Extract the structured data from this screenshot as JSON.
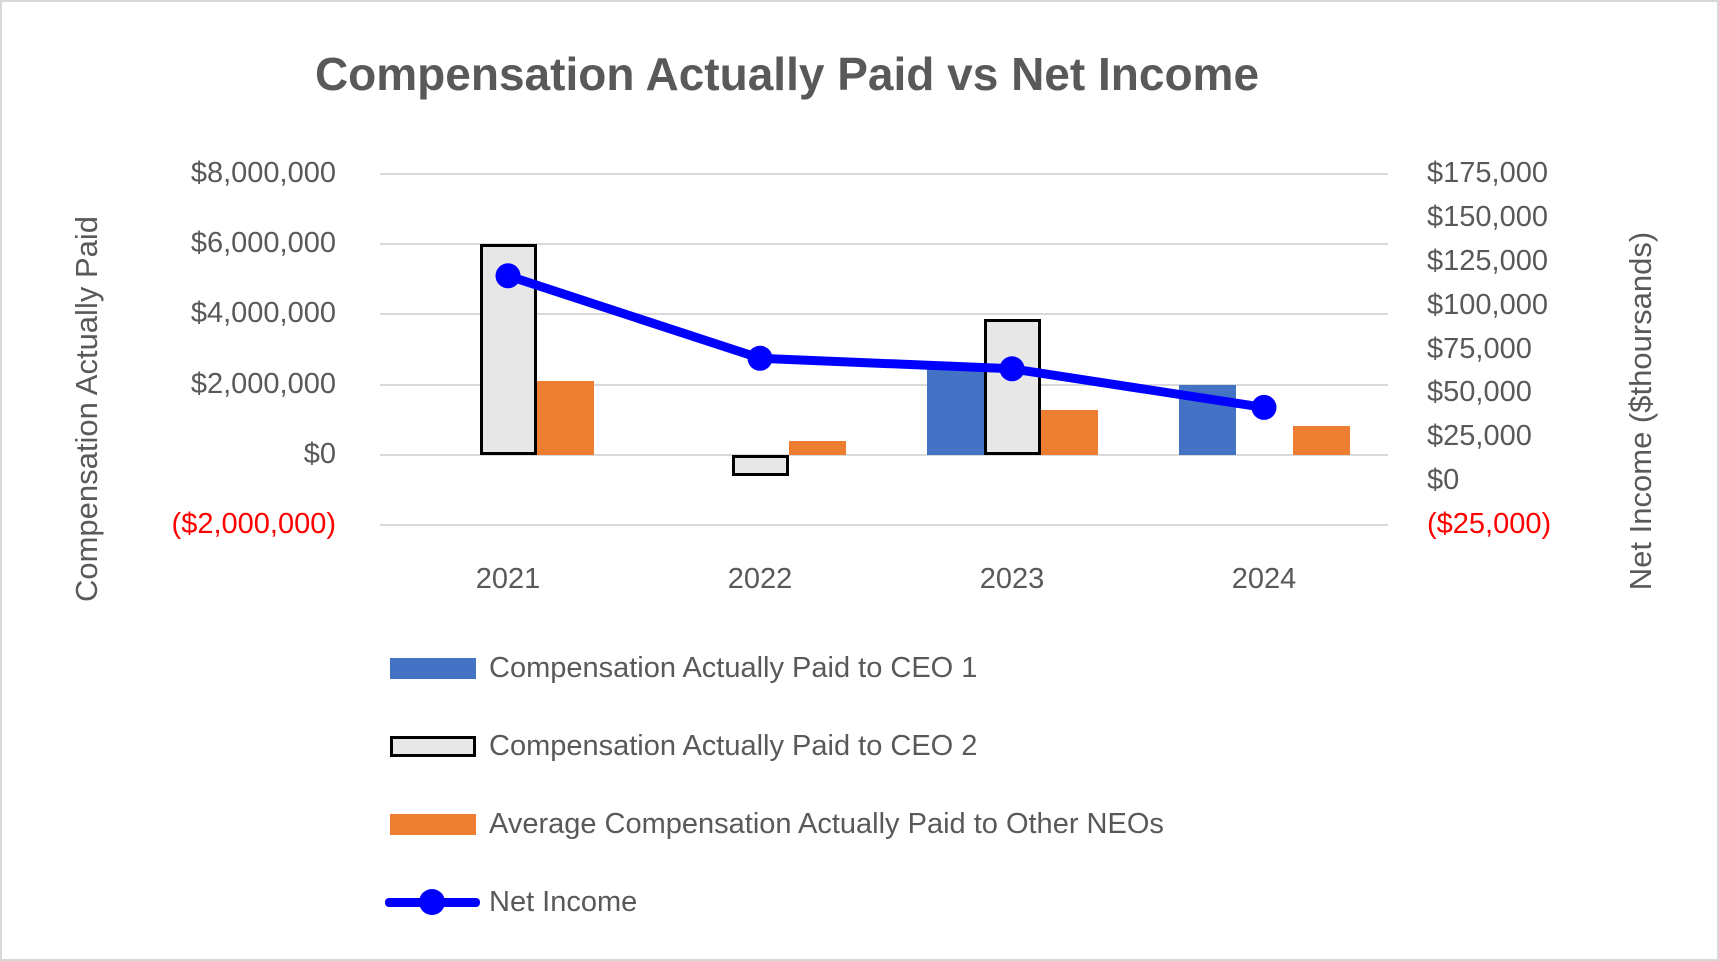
{
  "title": "Compensation Actually Paid vs Net Income",
  "chart_data": {
    "type": "bar",
    "subtype": "combo-bar-line-dual-axis",
    "categories": [
      "2021",
      "2022",
      "2023",
      "2024"
    ],
    "series": [
      {
        "key": "ceo1",
        "name": "Compensation Actually Paid to CEO 1",
        "type": "bar",
        "axis": "left",
        "color": "#4472C4",
        "values": [
          null,
          null,
          2450000,
          2000000
        ]
      },
      {
        "key": "ceo2",
        "name": "Compensation Actually Paid to CEO 2",
        "type": "bar",
        "axis": "left",
        "color": "#E8E7E7",
        "border_color": "#000000",
        "values": [
          6000000,
          -600000,
          3870000,
          null
        ]
      },
      {
        "key": "neo",
        "name": "Average Compensation Actually Paid to Other NEOs",
        "type": "bar",
        "axis": "left",
        "color": "#ED7D31",
        "values": [
          2100000,
          400000,
          1280000,
          820000
        ]
      },
      {
        "key": "net_income",
        "name": "Net Income",
        "type": "line",
        "axis": "right",
        "color": "#0000FF",
        "values": [
          117000,
          70000,
          64000,
          42000
        ]
      }
    ],
    "left_axis": {
      "title": "Compensation Actually Paid",
      "min": -2000000,
      "max": 8000000,
      "tick_step": 2000000,
      "tick_labels": [
        "$8,000,000",
        "$6,000,000",
        "$4,000,000",
        "$2,000,000",
        "$0",
        "($2,000,000)"
      ],
      "negative_label_color": "#FF0000"
    },
    "right_axis": {
      "title": "Net Income ($thoursands)",
      "min": -25000,
      "max": 175000,
      "tick_step": 25000,
      "tick_labels": [
        "$175,000",
        "$150,000",
        "$125,000",
        "$100,000",
        "$75,000",
        "$50,000",
        "$25,000",
        "$0",
        "($25,000)"
      ],
      "negative_label_color": "#FF0000"
    },
    "grid": true,
    "gridline_color": "#D9D9D9",
    "legend_position": "bottom-left",
    "text_color": "#595959"
  }
}
